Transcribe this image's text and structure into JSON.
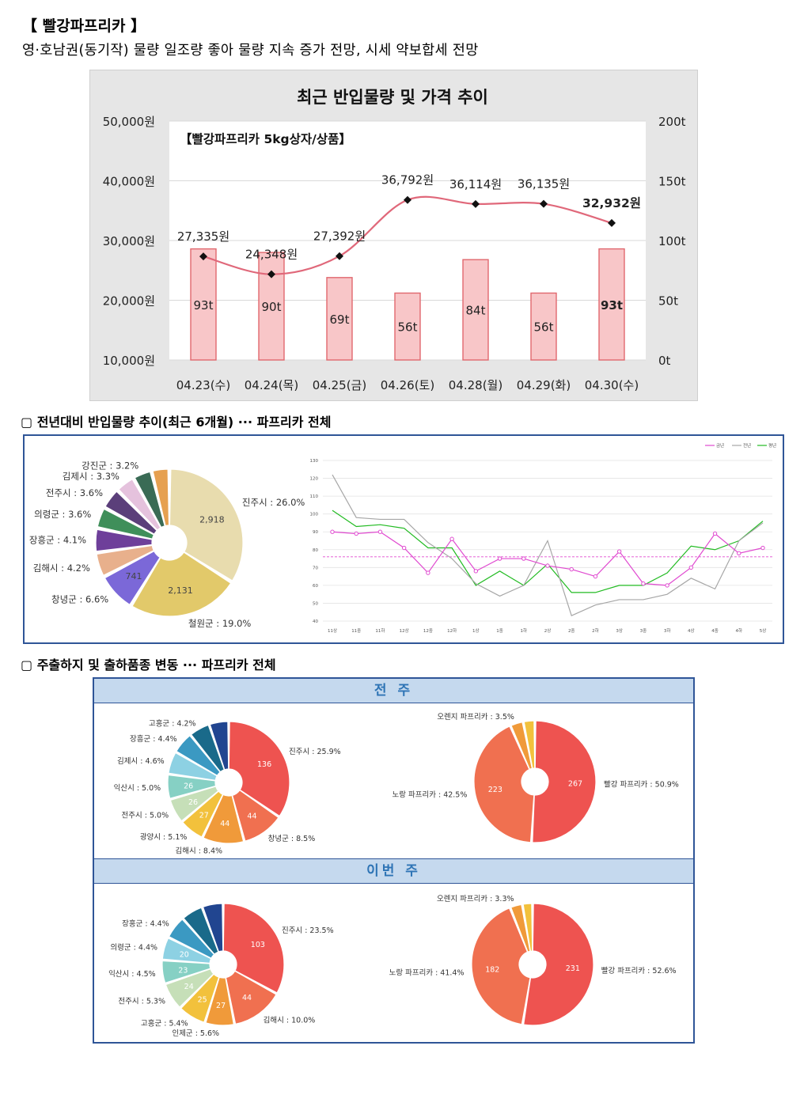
{
  "header": {
    "title": "【 빨강파프리카 】",
    "subtitle": "영·호남권(동기작) 물량 일조량 좋아 물량 지속 증가 전망, 시세 약보합세 전망"
  },
  "section1": {
    "chart_title": "최근 반입물량 및 가격 추이",
    "inner_label": "【빨강파프리카 5kg상자/상품】",
    "left_ticks": [
      "50,000원",
      "40,000원",
      "30,000원",
      "20,000원",
      "10,000원"
    ],
    "right_ticks": [
      "200t",
      "150t",
      "100t",
      "50t",
      "0t"
    ]
  },
  "section2": {
    "title": "▢ 전년대비 반입물량 추이(최근 6개월) ··· 파프리카 전체"
  },
  "section3": {
    "title": "▢ 주출하지 및 출하품종 변동 ··· 파프리카 전체",
    "band1": "전 주",
    "band2": "이번 주"
  },
  "colors": {
    "bar_fill": "#f8c6c8",
    "bar_stroke": "#e0686e",
    "price_line": "#e0687a",
    "frame_blue": "#2f5597",
    "band": "#c5d9ee",
    "dash_pink": "#e04ad0"
  },
  "chart_data": [
    {
      "id": "price_volume",
      "type": "bar",
      "title": "최근 반입물량 및 가격 추이",
      "subtitle": "【빨강파프리카 5kg상자/상품】",
      "categories": [
        "04.23(수)",
        "04.24(목)",
        "04.25(금)",
        "04.26(토)",
        "04.28(월)",
        "04.29(화)",
        "04.30(수)"
      ],
      "series": [
        {
          "type": "bar",
          "axis": "right",
          "values": [
            93,
            90,
            69,
            56,
            84,
            56,
            93
          ],
          "labels": [
            "93t",
            "90t",
            "69t",
            "56t",
            "84t",
            "56t",
            "93t"
          ]
        },
        {
          "type": "line",
          "axis": "left",
          "values": [
            27335,
            24348,
            27392,
            36792,
            36114,
            36135,
            32932
          ],
          "labels": [
            "27,335원",
            "24,348원",
            "27,392원",
            "36,792원",
            "36,114원",
            "36,135원",
            "32,932원"
          ]
        }
      ],
      "ylim_left": [
        10000,
        50000
      ],
      "ylim_right": [
        0,
        200
      ],
      "grid": true
    },
    {
      "id": "region_6m",
      "type": "pie",
      "style": "donut",
      "slices": [
        {
          "label": "진주시 : 26.0%",
          "value": 26.0,
          "count": "2,918",
          "color": "#e8dcae"
        },
        {
          "label": "철원군 : 19.0%",
          "value": 19.0,
          "count": "2,131",
          "color": "#e2c96a"
        },
        {
          "label": "창녕군 : 6.6%",
          "value": 6.6,
          "count": "741",
          "color": "#7b68d8"
        },
        {
          "label": "김해시 : 4.2%",
          "value": 4.2,
          "color": "#e8b08c"
        },
        {
          "label": "장흥군 : 4.1%",
          "value": 4.1,
          "color": "#6e3f9a"
        },
        {
          "label": "의령군 : 3.6%",
          "value": 3.6,
          "color": "#3f8f5a"
        },
        {
          "label": "전주시 : 3.6%",
          "value": 3.6,
          "color": "#5b3f7a"
        },
        {
          "label": "김제시 : 3.3%",
          "value": 3.3,
          "color": "#e5c2dd"
        },
        {
          "label": "강진군 : 3.2%",
          "value": 3.2,
          "color": "#3a6b55"
        },
        {
          "label": "",
          "value": 3.0,
          "color": "#e6a050"
        }
      ]
    },
    {
      "id": "yoy_lines",
      "type": "line",
      "ylim": [
        40,
        130
      ],
      "yticks": [
        "130",
        "120",
        "110",
        "100",
        "90",
        "80",
        "70",
        "60",
        "50",
        "40"
      ],
      "categories": [
        "11상",
        "11중",
        "11하",
        "12상",
        "12중",
        "12하",
        "1상",
        "1중",
        "1하",
        "2상",
        "2중",
        "2하",
        "3상",
        "3중",
        "3하",
        "4상",
        "4중",
        "4하",
        "5상"
      ],
      "legend": [
        "금년",
        "전년",
        "평년"
      ],
      "reference_line": 76,
      "series": [
        {
          "name": "금년",
          "color": "#e04ad0",
          "marker": true,
          "values": [
            90,
            89,
            90,
            81,
            67,
            86,
            68,
            75,
            75,
            71,
            69,
            65,
            79,
            61,
            60,
            70,
            89,
            78,
            81
          ]
        },
        {
          "name": "전년",
          "color": "#a6a6a6",
          "values": [
            122,
            98,
            97,
            97,
            84,
            75,
            61,
            54,
            60,
            85,
            43,
            49,
            52,
            52,
            55,
            64,
            58,
            85,
            95
          ]
        },
        {
          "name": "평년",
          "color": "#22bb22",
          "values": [
            102,
            93,
            94,
            92,
            81,
            81,
            60,
            68,
            60,
            72,
            56,
            56,
            60,
            60,
            67,
            82,
            80,
            85,
            96
          ]
        }
      ]
    },
    {
      "id": "region_prev_week",
      "type": "pie",
      "style": "donut",
      "slices": [
        {
          "label": "진주시 : 25.9%",
          "value": 25.9,
          "count": "136",
          "color": "#ee5350"
        },
        {
          "label": "창녕군 : 8.5%",
          "value": 8.5,
          "count": "44",
          "color": "#f07050"
        },
        {
          "label": "김해시 : 8.4%",
          "value": 8.4,
          "count": "44",
          "color": "#f09a3a"
        },
        {
          "label": "광양시 : 5.1%",
          "value": 5.1,
          "count": "27",
          "color": "#f2c13c"
        },
        {
          "label": "전주시 : 5.0%",
          "value": 5.0,
          "count": "26",
          "color": "#c6dfb8"
        },
        {
          "label": "익산시 : 5.0%",
          "value": 5.0,
          "count": "26",
          "color": "#86d0c4"
        },
        {
          "label": "김제시 : 4.6%",
          "value": 4.6,
          "color": "#8dd1e3"
        },
        {
          "label": "장흥군 : 4.4%",
          "value": 4.4,
          "color": "#3b99c2"
        },
        {
          "label": "고흥군 : 4.2%",
          "value": 4.2,
          "color": "#1a6a8a"
        },
        {
          "label": "",
          "value": 3.9,
          "color": "#214590"
        }
      ]
    },
    {
      "id": "variety_prev_week",
      "type": "pie",
      "style": "donut",
      "slices": [
        {
          "label": "빨강 파프리카 : 50.9%",
          "value": 50.9,
          "count": "267",
          "color": "#ee5350"
        },
        {
          "label": "노랑 파프리카 : 42.5%",
          "value": 42.5,
          "count": "223",
          "color": "#f07050"
        },
        {
          "label": "오렌지 파프리카 : 3.5%",
          "value": 3.5,
          "color": "#f09a3a"
        },
        {
          "label": "",
          "value": 3.1,
          "color": "#f2c13c"
        }
      ]
    },
    {
      "id": "region_this_week",
      "type": "pie",
      "style": "donut",
      "slices": [
        {
          "label": "진주시 : 23.5%",
          "value": 23.5,
          "count": "103",
          "color": "#ee5350"
        },
        {
          "label": "김해시 : 10.0%",
          "value": 10.0,
          "count": "44",
          "color": "#f07050"
        },
        {
          "label": "인제군 : 5.6%",
          "value": 5.6,
          "count": "27",
          "color": "#f09a3a"
        },
        {
          "label": "고흥군 : 5.4%",
          "value": 5.4,
          "count": "25",
          "color": "#f2c13c"
        },
        {
          "label": "전주시 : 5.3%",
          "value": 5.3,
          "count": "24",
          "color": "#c6dfb8"
        },
        {
          "label": "익산시 : 4.5%",
          "value": 4.5,
          "count": "23",
          "color": "#86d0c4"
        },
        {
          "label": "의령군 : 4.4%",
          "value": 4.4,
          "count": "20",
          "color": "#8dd1e3"
        },
        {
          "label": "장흥군 : 4.4%",
          "value": 4.4,
          "color": "#3b99c2"
        },
        {
          "label": "",
          "value": 4.2,
          "color": "#1a6a8a"
        },
        {
          "label": "",
          "value": 4.0,
          "color": "#214590"
        }
      ]
    },
    {
      "id": "variety_this_week",
      "type": "pie",
      "style": "donut",
      "slices": [
        {
          "label": "빨강 파프리카 : 52.6%",
          "value": 52.6,
          "count": "231",
          "color": "#ee5350"
        },
        {
          "label": "노랑 파프리카 : 41.4%",
          "value": 41.4,
          "count": "182",
          "color": "#f07050"
        },
        {
          "label": "오렌지 파프리카 : 3.3%",
          "value": 3.3,
          "color": "#f09a3a"
        },
        {
          "label": "",
          "value": 2.7,
          "color": "#f2c13c"
        }
      ]
    }
  ]
}
